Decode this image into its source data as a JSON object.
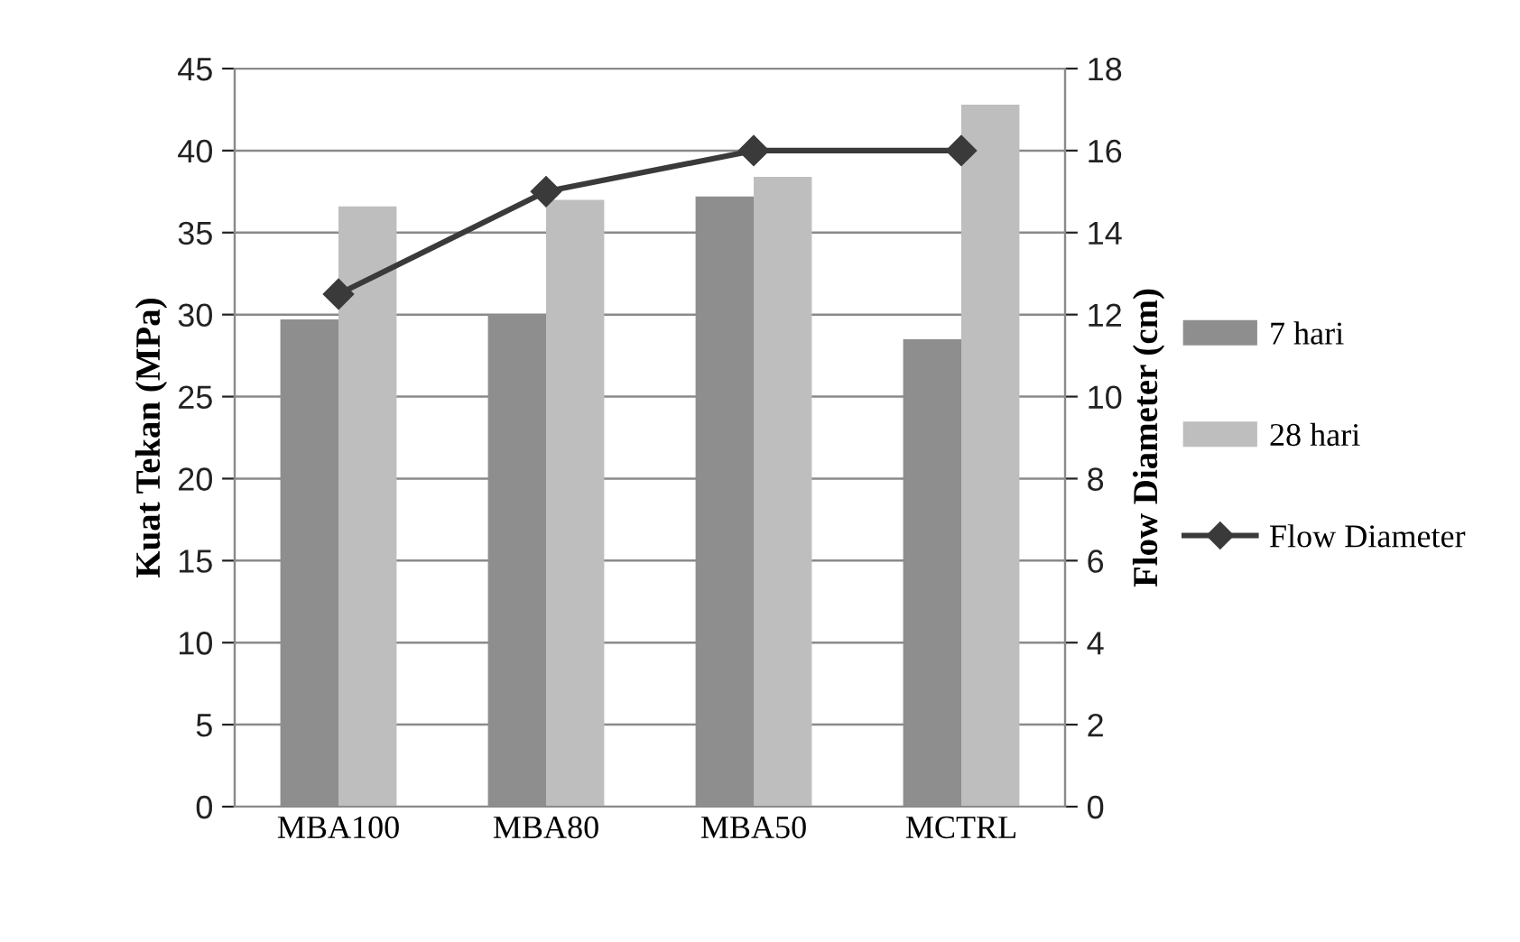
{
  "chart_data": {
    "type": "bar",
    "categories": [
      "MBA100",
      "MBA80",
      "MBA50",
      "MCTRL"
    ],
    "ylabel": "Kuat Tekan (MPa)",
    "y2label": "Flow Diameter (cm)",
    "series": [
      {
        "name": "7 hari",
        "color": "#8e8e8e",
        "values": [
          29.7,
          30.0,
          37.2,
          28.5
        ]
      },
      {
        "name": "28 hari",
        "color": "#bebebe",
        "values": [
          36.6,
          37.0,
          38.4,
          42.8
        ]
      },
      {
        "name": "Flow Diameter",
        "type": "line",
        "axis": "y2",
        "color": "#3a3a3a",
        "marker": "diamond",
        "values": [
          12.5,
          15,
          16,
          16
        ]
      }
    ],
    "ylim": [
      0,
      45
    ],
    "yticks": [
      0,
      5,
      10,
      15,
      20,
      25,
      30,
      35,
      40,
      45
    ],
    "y2lim": [
      0,
      18
    ],
    "y2ticks": [
      0,
      2,
      4,
      6,
      8,
      10,
      12,
      14,
      16,
      18
    ],
    "grid": "y",
    "legend": "right"
  }
}
